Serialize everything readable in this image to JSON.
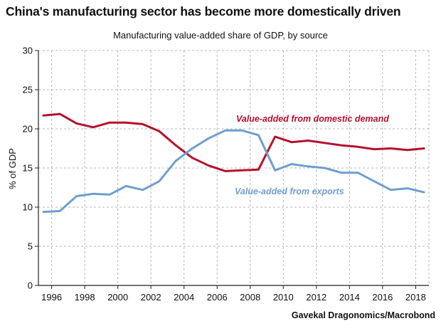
{
  "title": "China's manufacturing sector has become more domestically driven",
  "subtitle": "Manufacturing value-added share of GDP, by source",
  "source": "Gavekal Dragonomics/Macrobond",
  "colors": {
    "domestic": "#b5102e",
    "exports": "#6f9fcf",
    "grid": "#b8b8b8",
    "axis": "#222222"
  },
  "chart_data": {
    "type": "line",
    "ylabel": "% of GDP",
    "ylim": [
      0,
      30
    ],
    "yticks": [
      0,
      5,
      10,
      15,
      20,
      25,
      30
    ],
    "xlim": [
      1995.2,
      2018.8
    ],
    "xticks": [
      1996,
      1998,
      2000,
      2002,
      2004,
      2006,
      2008,
      2010,
      2012,
      2014,
      2016,
      2018
    ],
    "grid": true,
    "series": [
      {
        "name": "Value-added from domestic demand",
        "key": "domestic",
        "x": [
          1995.5,
          1996.5,
          1997.5,
          1998.5,
          1999.5,
          2000.5,
          2001.5,
          2002.5,
          2003.5,
          2004.5,
          2005.5,
          2006.5,
          2007.5,
          2008.5,
          2009.5,
          2010.5,
          2011.5,
          2012.5,
          2013.5,
          2014.5,
          2015.5,
          2016.5,
          2017.5,
          2018.5
        ],
        "values": [
          21.7,
          21.9,
          20.7,
          20.2,
          20.8,
          20.8,
          20.6,
          19.7,
          17.9,
          16.3,
          15.3,
          14.6,
          14.7,
          14.8,
          19.0,
          18.3,
          18.5,
          18.2,
          17.9,
          17.7,
          17.4,
          17.5,
          17.3,
          17.5
        ]
      },
      {
        "name": "Value-added from exports",
        "key": "exports",
        "x": [
          1995.5,
          1996.5,
          1997.5,
          1998.5,
          1999.5,
          2000.5,
          2001.5,
          2002.5,
          2003.5,
          2004.5,
          2005.5,
          2006.5,
          2007.5,
          2008.5,
          2009.5,
          2010.5,
          2011.5,
          2012.5,
          2013.5,
          2014.5,
          2015.5,
          2016.5,
          2017.5,
          2018.5
        ],
        "values": [
          9.4,
          9.5,
          11.4,
          11.7,
          11.6,
          12.7,
          12.2,
          13.3,
          15.9,
          17.5,
          18.8,
          19.8,
          19.8,
          19.2,
          14.7,
          15.5,
          15.2,
          15.0,
          14.4,
          14.4,
          13.3,
          12.2,
          12.4,
          11.9
        ]
      }
    ]
  }
}
